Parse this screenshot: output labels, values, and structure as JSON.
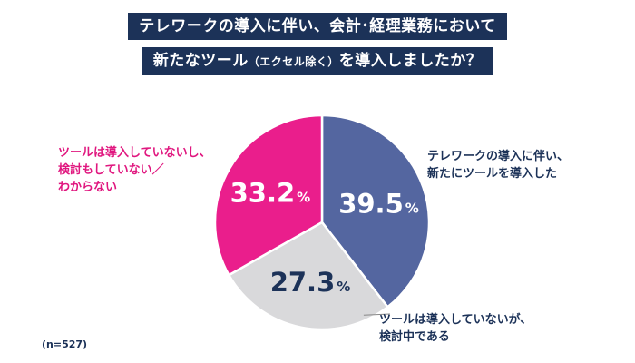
{
  "header": {
    "title_line1": "テレワークの導入に伴い、会計･経理業務において",
    "title_line2_prefix": "新たなツール",
    "title_line2_small": "（エクセル除く）",
    "title_line2_suffix": "を導入しましたか？"
  },
  "chart_data": {
    "type": "pie",
    "title": "テレワークの導入に伴い、会計･経理業務において新たなツール（エクセル除く）を導入しましたか？",
    "unit": "%",
    "start_angle_deg": 0,
    "direction": "clockwise",
    "slices": [
      {
        "name": "テレワークの導入に伴い、\n新たにツールを導入した",
        "value": 39.5,
        "value_label": "39.5",
        "color": "#5466a0",
        "text_color": "#ffffff"
      },
      {
        "name": "ツールは導入していないが、\n検討中である",
        "value": 27.3,
        "value_label": "27.3",
        "color": "#d9d9db",
        "text_color": "#1c3258"
      },
      {
        "name": "ツールは導入していないし、\n検討もしていない／\nわからない",
        "value": 33.2,
        "value_label": "33.2",
        "color": "#ea1e8c",
        "text_color": "#ffffff"
      }
    ]
  },
  "labels": {
    "slice0": "テレワークの導入に伴い、\n新たにツールを導入した",
    "slice1": "ツールは導入していないが、\n検討中である",
    "slice2": "ツールは導入していないし、\n検討もしていない／\nわからない"
  },
  "footer": {
    "note": "(n=527)"
  },
  "colors": {
    "title_background": "#1c3258",
    "label_text_default": "#1c3258",
    "label_text_pink": "#e0177f",
    "leader_line": "#888888"
  }
}
